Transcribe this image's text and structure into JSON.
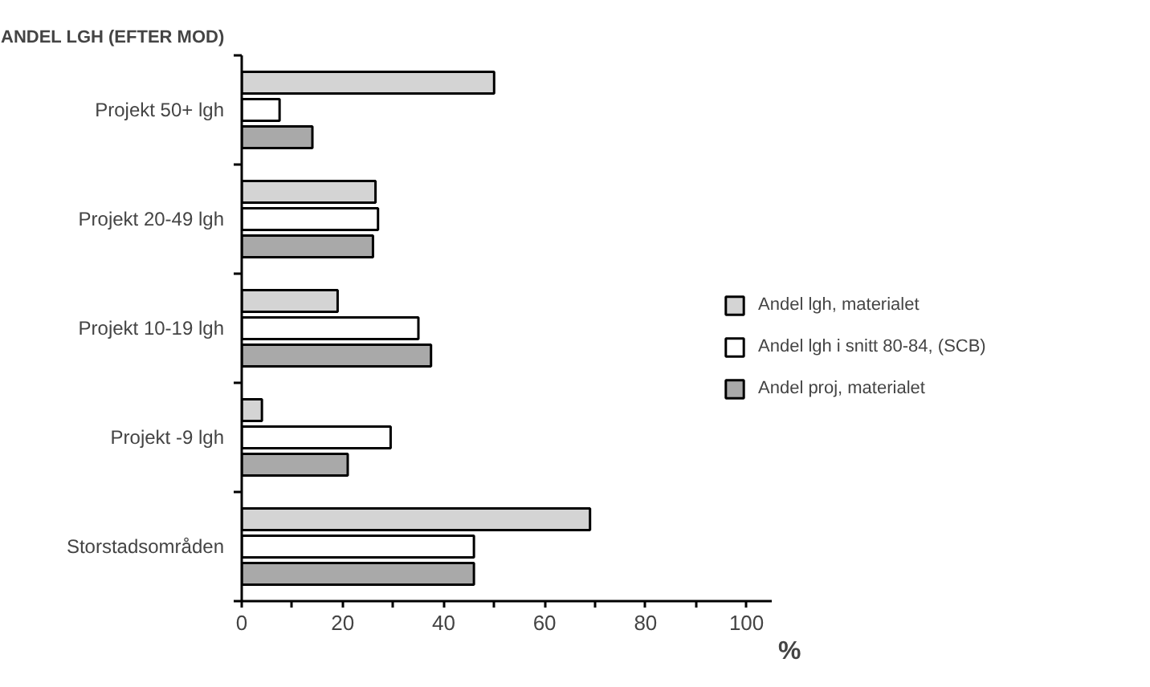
{
  "chart_data": {
    "type": "bar",
    "orientation": "horizontal",
    "title": "ANDEL LGH (EFTER MOD)",
    "xlabel": "%",
    "categories": [
      "Projekt 50+ lgh",
      "Projekt 20-49 lgh",
      "Projekt 10-19 lgh",
      "Projekt -9 lgh",
      "Storstadsområden"
    ],
    "series": [
      {
        "name": "Andel lgh, materialet",
        "color": "#d4d4d4",
        "values": [
          50,
          26.5,
          19,
          4,
          69
        ]
      },
      {
        "name": "Andel lgh i snitt 80-84, (SCB)",
        "color": "#ffffff",
        "values": [
          7.5,
          27,
          35,
          29.5,
          46
        ]
      },
      {
        "name": "Andel proj, materialet",
        "color": "#a9a9a9",
        "values": [
          14,
          26,
          37.5,
          21,
          46
        ]
      }
    ],
    "xlim": [
      0,
      105
    ],
    "xticks": [
      0,
      {
        "value": 10,
        "label": null
      },
      20,
      {
        "value": 30,
        "label": null
      },
      40,
      {
        "value": 50,
        "label": null
      },
      60,
      {
        "value": 70,
        "label": null
      },
      80,
      {
        "value": 90,
        "label": null
      },
      100
    ],
    "grid": false,
    "legend": "right"
  }
}
